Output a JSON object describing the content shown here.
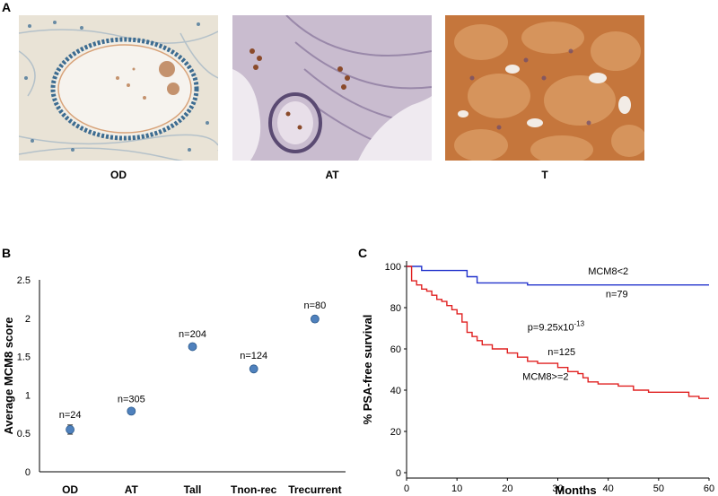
{
  "panels": {
    "a_letter": "A",
    "b_letter": "B",
    "c_letter": "C"
  },
  "images": [
    {
      "label": "OD",
      "stain": "light-blue-hematoxylin"
    },
    {
      "label": "AT",
      "stain": "mixed-purple"
    },
    {
      "label": "T",
      "stain": "brown-dab"
    }
  ],
  "colors": {
    "marker": "#4f81bd",
    "mcm_low": "#2233cc",
    "mcm_high": "#e02020"
  },
  "chart_data": [
    {
      "type": "scatter",
      "ylabel": "Average MCM8 score",
      "xlabel": "",
      "ylim": [
        0,
        2.5
      ],
      "yticks": [
        "0",
        "0.5",
        "1",
        "1.5",
        "2",
        "2.5"
      ],
      "categories": [
        "OD",
        "AT",
        "Tall",
        "Tnon-rec",
        "Trecurrent"
      ],
      "values": [
        0.55,
        0.79,
        1.63,
        1.34,
        1.99
      ],
      "errors": [
        0.06,
        0.02,
        0.03,
        0.04,
        0.04
      ],
      "annotations": [
        "n=24",
        "n=305",
        "n=204",
        "n=124",
        "n=80"
      ]
    },
    {
      "type": "line",
      "xlabel": "Months",
      "ylabel": "% PSA-free survival",
      "xlim": [
        0,
        60
      ],
      "ylim": [
        0,
        100
      ],
      "xticks": [
        "0",
        "10",
        "20",
        "30",
        "40",
        "50",
        "60"
      ],
      "yticks": [
        "0",
        "20",
        "40",
        "60",
        "80",
        "100"
      ],
      "series": [
        {
          "name": "MCM8<2",
          "n_label": "n=79",
          "x": [
            0,
            3,
            3,
            12,
            12,
            14,
            14,
            24,
            24,
            60
          ],
          "y": [
            100,
            100,
            98,
            98,
            95,
            95,
            92,
            92,
            91,
            91
          ]
        },
        {
          "name": "MCM8>=2",
          "n_label": "n=125",
          "x": [
            0,
            1,
            1,
            2,
            2,
            3,
            3,
            4,
            4,
            5,
            5,
            6,
            6,
            7,
            7,
            8,
            8,
            9,
            9,
            10,
            10,
            11,
            11,
            12,
            12,
            13,
            13,
            14,
            14,
            15,
            15,
            17,
            17,
            20,
            20,
            22,
            22,
            24,
            24,
            26,
            26,
            30,
            30,
            32,
            32,
            34,
            34,
            35,
            35,
            36,
            36,
            38,
            38,
            42,
            42,
            45,
            45,
            48,
            48,
            56,
            56,
            58,
            58,
            60
          ],
          "y": [
            100,
            100,
            93,
            93,
            91,
            91,
            89,
            89,
            88,
            88,
            86,
            86,
            84,
            84,
            83,
            83,
            81,
            81,
            79,
            79,
            77,
            77,
            73,
            73,
            68,
            68,
            66,
            66,
            64,
            64,
            62,
            62,
            60,
            60,
            58,
            58,
            56,
            56,
            54,
            54,
            53,
            53,
            51,
            51,
            49,
            49,
            48,
            48,
            46,
            46,
            44,
            44,
            43,
            43,
            42,
            42,
            40,
            40,
            39,
            39,
            37,
            37,
            36,
            36
          ]
        }
      ],
      "annotation": {
        "prefix": "p=9.25x10",
        "exponent": "-13"
      }
    }
  ]
}
